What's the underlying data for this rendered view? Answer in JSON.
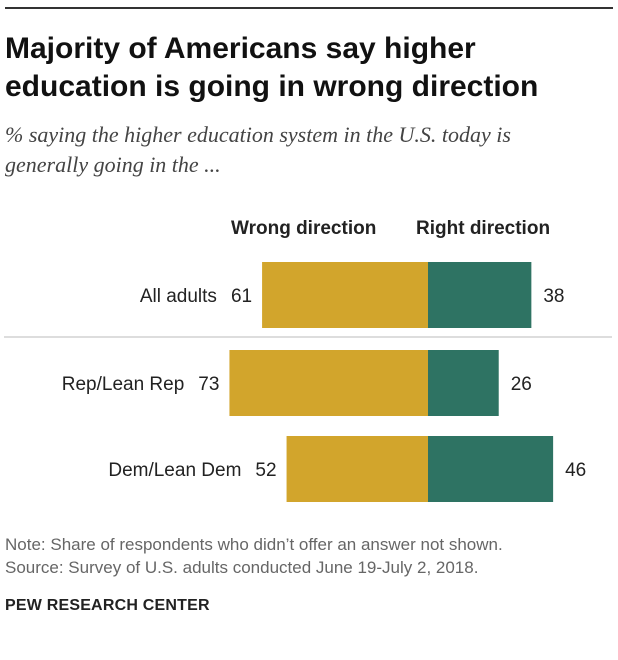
{
  "header": {
    "title_line1": "Majority of Americans say higher",
    "title_line2": "education is going in wrong direction",
    "subtitle_line1": "% saying the higher education system in the U.S. today is",
    "subtitle_line2": "generally going in the ..."
  },
  "columns": {
    "wrong": "Wrong direction",
    "right": "Right direction"
  },
  "colors": {
    "wrong": "#D2A52C",
    "right": "#2E7363",
    "divider": "#BBBBBB"
  },
  "chart_data": {
    "type": "bar",
    "orientation": "horizontal-diverging",
    "categories": [
      "All adults",
      "Rep/Lean Rep",
      "Dem/Lean Dem"
    ],
    "series": [
      {
        "name": "Wrong direction",
        "values": [
          61,
          73,
          52
        ]
      },
      {
        "name": "Right direction",
        "values": [
          38,
          26,
          46
        ]
      }
    ],
    "title": "Majority of Americans say higher education is going in wrong direction",
    "grid": false
  },
  "footer": {
    "note": "Note: Share of respondents who didn’t offer an answer not shown.",
    "source": "Source: Survey of U.S. adults conducted June 19-July 2, 2018.",
    "brand": "PEW RESEARCH CENTER"
  }
}
